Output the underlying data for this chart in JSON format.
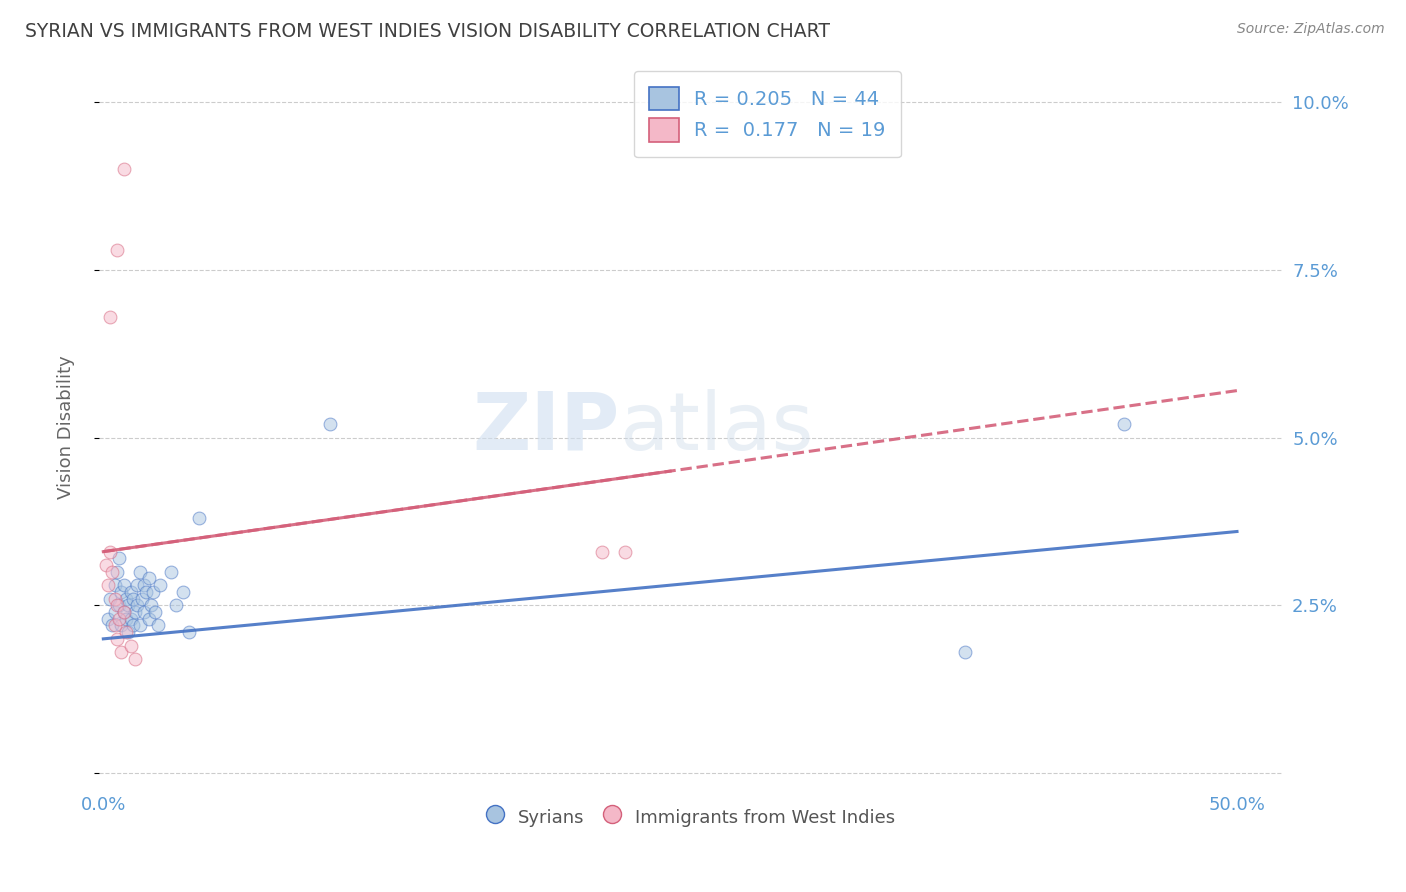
{
  "title": "SYRIAN VS IMMIGRANTS FROM WEST INDIES VISION DISABILITY CORRELATION CHART",
  "source": "Source: ZipAtlas.com",
  "ylabel": "Vision Disability",
  "watermark": "ZIPatlas",
  "legend": {
    "syrian": {
      "R": 0.205,
      "N": 44,
      "color": "#a8c4e0",
      "line_color": "#4472c4"
    },
    "west_indies": {
      "R": 0.177,
      "N": 19,
      "color": "#f4b8c8",
      "line_color": "#d4607a"
    }
  },
  "ylim": [
    -0.002,
    0.105
  ],
  "xlim": [
    -0.002,
    0.52
  ],
  "yticks": [
    0.0,
    0.025,
    0.05,
    0.075,
    0.1
  ],
  "ytick_labels": [
    "",
    "2.5%",
    "5.0%",
    "7.5%",
    "10.0%"
  ],
  "xticks": [
    0.0,
    0.5
  ],
  "xtick_labels": [
    "0.0%",
    "50.0%"
  ],
  "syrian_points": [
    [
      0.002,
      0.023
    ],
    [
      0.003,
      0.026
    ],
    [
      0.004,
      0.022
    ],
    [
      0.005,
      0.028
    ],
    [
      0.005,
      0.024
    ],
    [
      0.006,
      0.03
    ],
    [
      0.007,
      0.032
    ],
    [
      0.007,
      0.025
    ],
    [
      0.008,
      0.027
    ],
    [
      0.008,
      0.022
    ],
    [
      0.009,
      0.028
    ],
    [
      0.009,
      0.024
    ],
    [
      0.01,
      0.026
    ],
    [
      0.01,
      0.023
    ],
    [
      0.011,
      0.025
    ],
    [
      0.011,
      0.021
    ],
    [
      0.012,
      0.027
    ],
    [
      0.012,
      0.023
    ],
    [
      0.013,
      0.026
    ],
    [
      0.013,
      0.022
    ],
    [
      0.014,
      0.024
    ],
    [
      0.015,
      0.028
    ],
    [
      0.015,
      0.025
    ],
    [
      0.016,
      0.03
    ],
    [
      0.016,
      0.022
    ],
    [
      0.017,
      0.026
    ],
    [
      0.018,
      0.028
    ],
    [
      0.018,
      0.024
    ],
    [
      0.019,
      0.027
    ],
    [
      0.02,
      0.029
    ],
    [
      0.02,
      0.023
    ],
    [
      0.021,
      0.025
    ],
    [
      0.022,
      0.027
    ],
    [
      0.023,
      0.024
    ],
    [
      0.024,
      0.022
    ],
    [
      0.025,
      0.028
    ],
    [
      0.03,
      0.03
    ],
    [
      0.032,
      0.025
    ],
    [
      0.035,
      0.027
    ],
    [
      0.038,
      0.021
    ],
    [
      0.042,
      0.038
    ],
    [
      0.1,
      0.052
    ],
    [
      0.45,
      0.052
    ],
    [
      0.38,
      0.018
    ]
  ],
  "west_indies_points": [
    [
      0.001,
      0.031
    ],
    [
      0.002,
      0.028
    ],
    [
      0.003,
      0.033
    ],
    [
      0.004,
      0.03
    ],
    [
      0.005,
      0.026
    ],
    [
      0.005,
      0.022
    ],
    [
      0.006,
      0.025
    ],
    [
      0.006,
      0.02
    ],
    [
      0.007,
      0.023
    ],
    [
      0.008,
      0.018
    ],
    [
      0.009,
      0.024
    ],
    [
      0.01,
      0.021
    ],
    [
      0.012,
      0.019
    ],
    [
      0.014,
      0.017
    ],
    [
      0.003,
      0.068
    ],
    [
      0.006,
      0.078
    ],
    [
      0.009,
      0.09
    ],
    [
      0.22,
      0.033
    ],
    [
      0.23,
      0.033
    ]
  ],
  "background_color": "#ffffff",
  "grid_color": "#cccccc",
  "title_color": "#404040",
  "axis_color": "#5b9bd5",
  "marker_size": 85,
  "marker_alpha": 0.5,
  "line_alpha": 0.9
}
